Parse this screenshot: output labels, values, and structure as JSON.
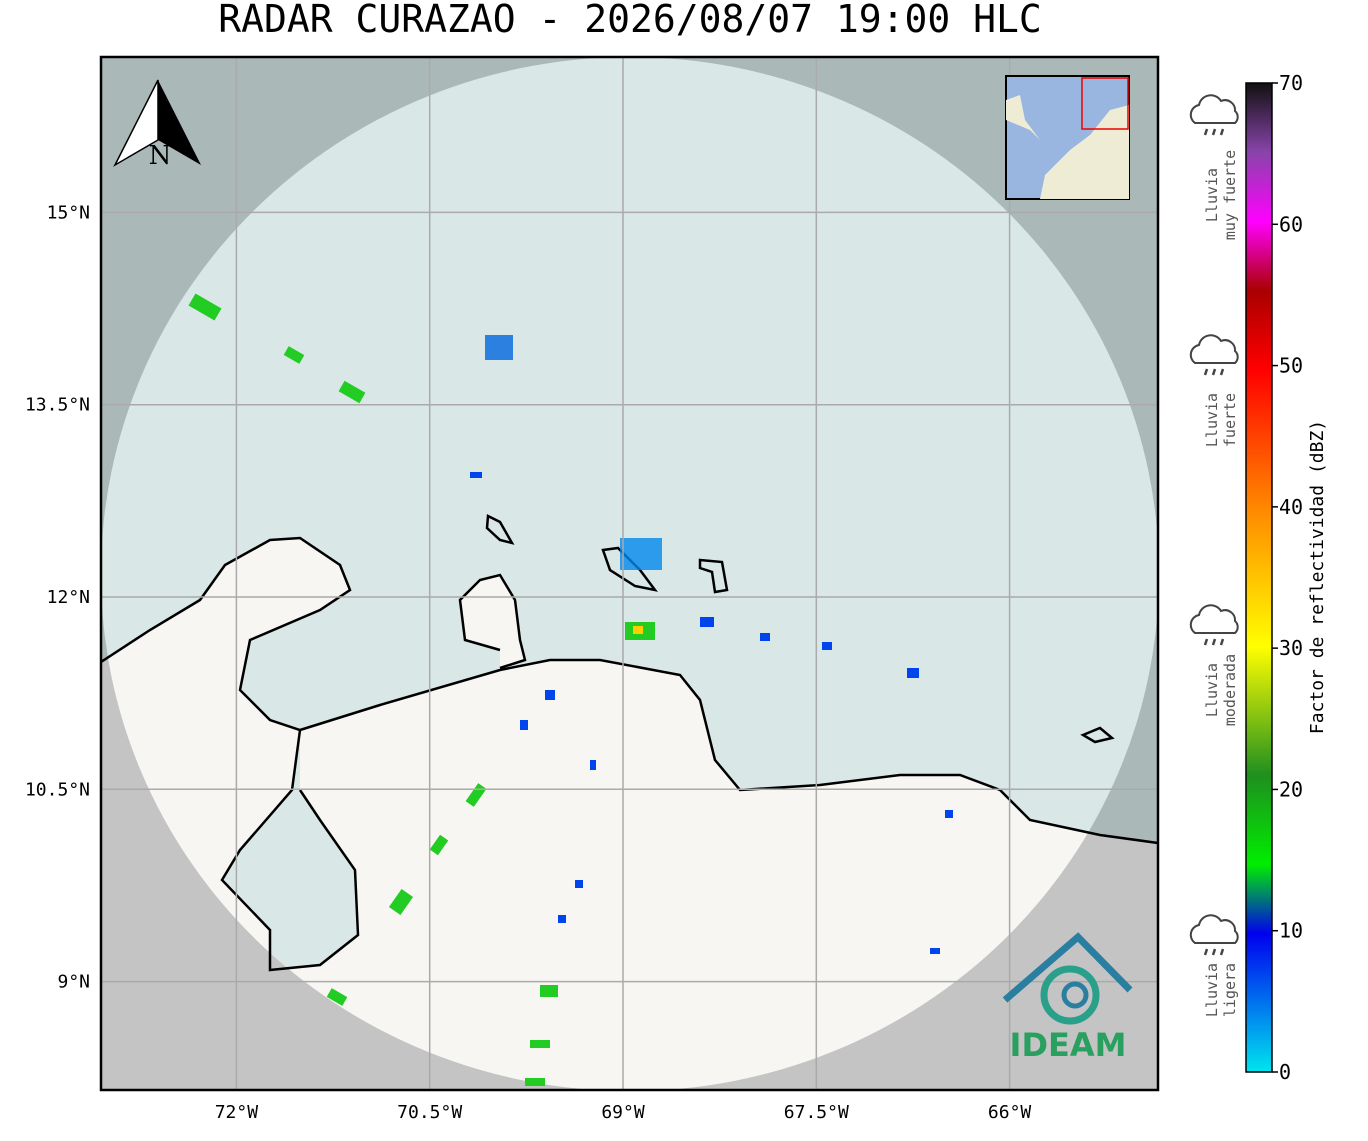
{
  "header": {
    "title": "RADAR CURAZAO - 2026/08/07 19:00 HLC"
  },
  "map": {
    "lat_ticks": [
      {
        "value": 15,
        "label": "15°N"
      },
      {
        "value": 13.5,
        "label": "13.5°N"
      },
      {
        "value": 12,
        "label": "12°N"
      },
      {
        "value": 10.5,
        "label": "10.5°N"
      },
      {
        "value": 9,
        "label": "9°N"
      }
    ],
    "lon_ticks": [
      {
        "value": -72,
        "label": "72°W"
      },
      {
        "value": -70.5,
        "label": "70.5°W"
      },
      {
        "value": -69,
        "label": "69°W"
      },
      {
        "value": -67.5,
        "label": "67.5°W"
      },
      {
        "value": -66,
        "label": "66°W"
      }
    ],
    "north_label": "N",
    "logo_text": "IDEAM"
  },
  "colorbar": {
    "label": "Factor de reflectividad (dBZ)",
    "ticks": [
      0,
      10,
      20,
      30,
      40,
      50,
      60,
      70
    ]
  },
  "legend": [
    {
      "lines": [
        "Lluvia",
        "muy fuerte"
      ]
    },
    {
      "lines": [
        "Lluvia",
        "fuerte"
      ]
    },
    {
      "lines": [
        "Lluvia",
        "moderada"
      ]
    },
    {
      "lines": [
        "Lluvia",
        "ligera"
      ]
    }
  ]
}
